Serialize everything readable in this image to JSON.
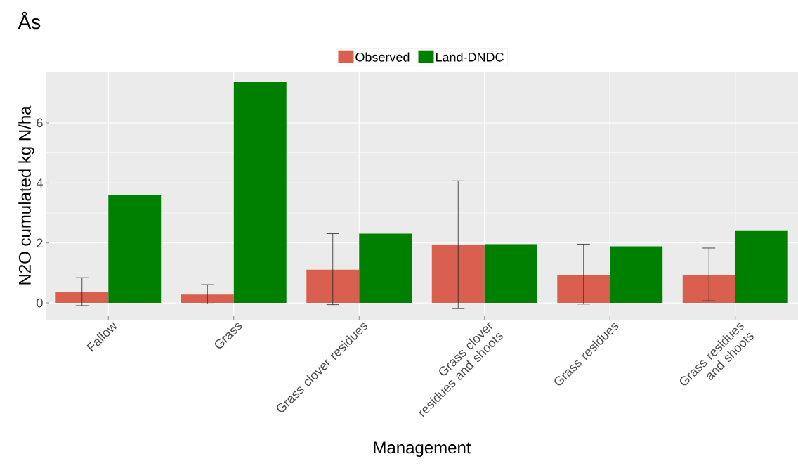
{
  "chart_data": {
    "type": "bar",
    "title": "Ås",
    "xlabel": "Management",
    "ylabel": "N2O cumulated kg N/ha",
    "categories": [
      "Fallow",
      "Grass",
      "Grass clover residues",
      "Grass clover residues and shoots",
      "Grass residues",
      "Grass residues and shoots"
    ],
    "series": [
      {
        "name": "Observed",
        "color": "#d9604e",
        "values": [
          0.36,
          0.28,
          1.11,
          1.93,
          0.94,
          0.94
        ],
        "errors": [
          [
            -0.09,
            0.84
          ],
          [
            -0.03,
            0.61
          ],
          [
            -0.06,
            2.31
          ],
          [
            -0.19,
            4.07
          ],
          [
            -0.04,
            1.96
          ],
          [
            0.07,
            1.83
          ]
        ]
      },
      {
        "name": "Land-DNDC",
        "color": "#008000",
        "values": [
          3.6,
          7.36,
          2.31,
          1.96,
          1.89,
          2.4
        ]
      }
    ],
    "ylim": [
      -0.56,
      7.71
    ],
    "yticks": [
      0,
      2,
      4,
      6
    ],
    "grid": true,
    "legend": "top"
  }
}
